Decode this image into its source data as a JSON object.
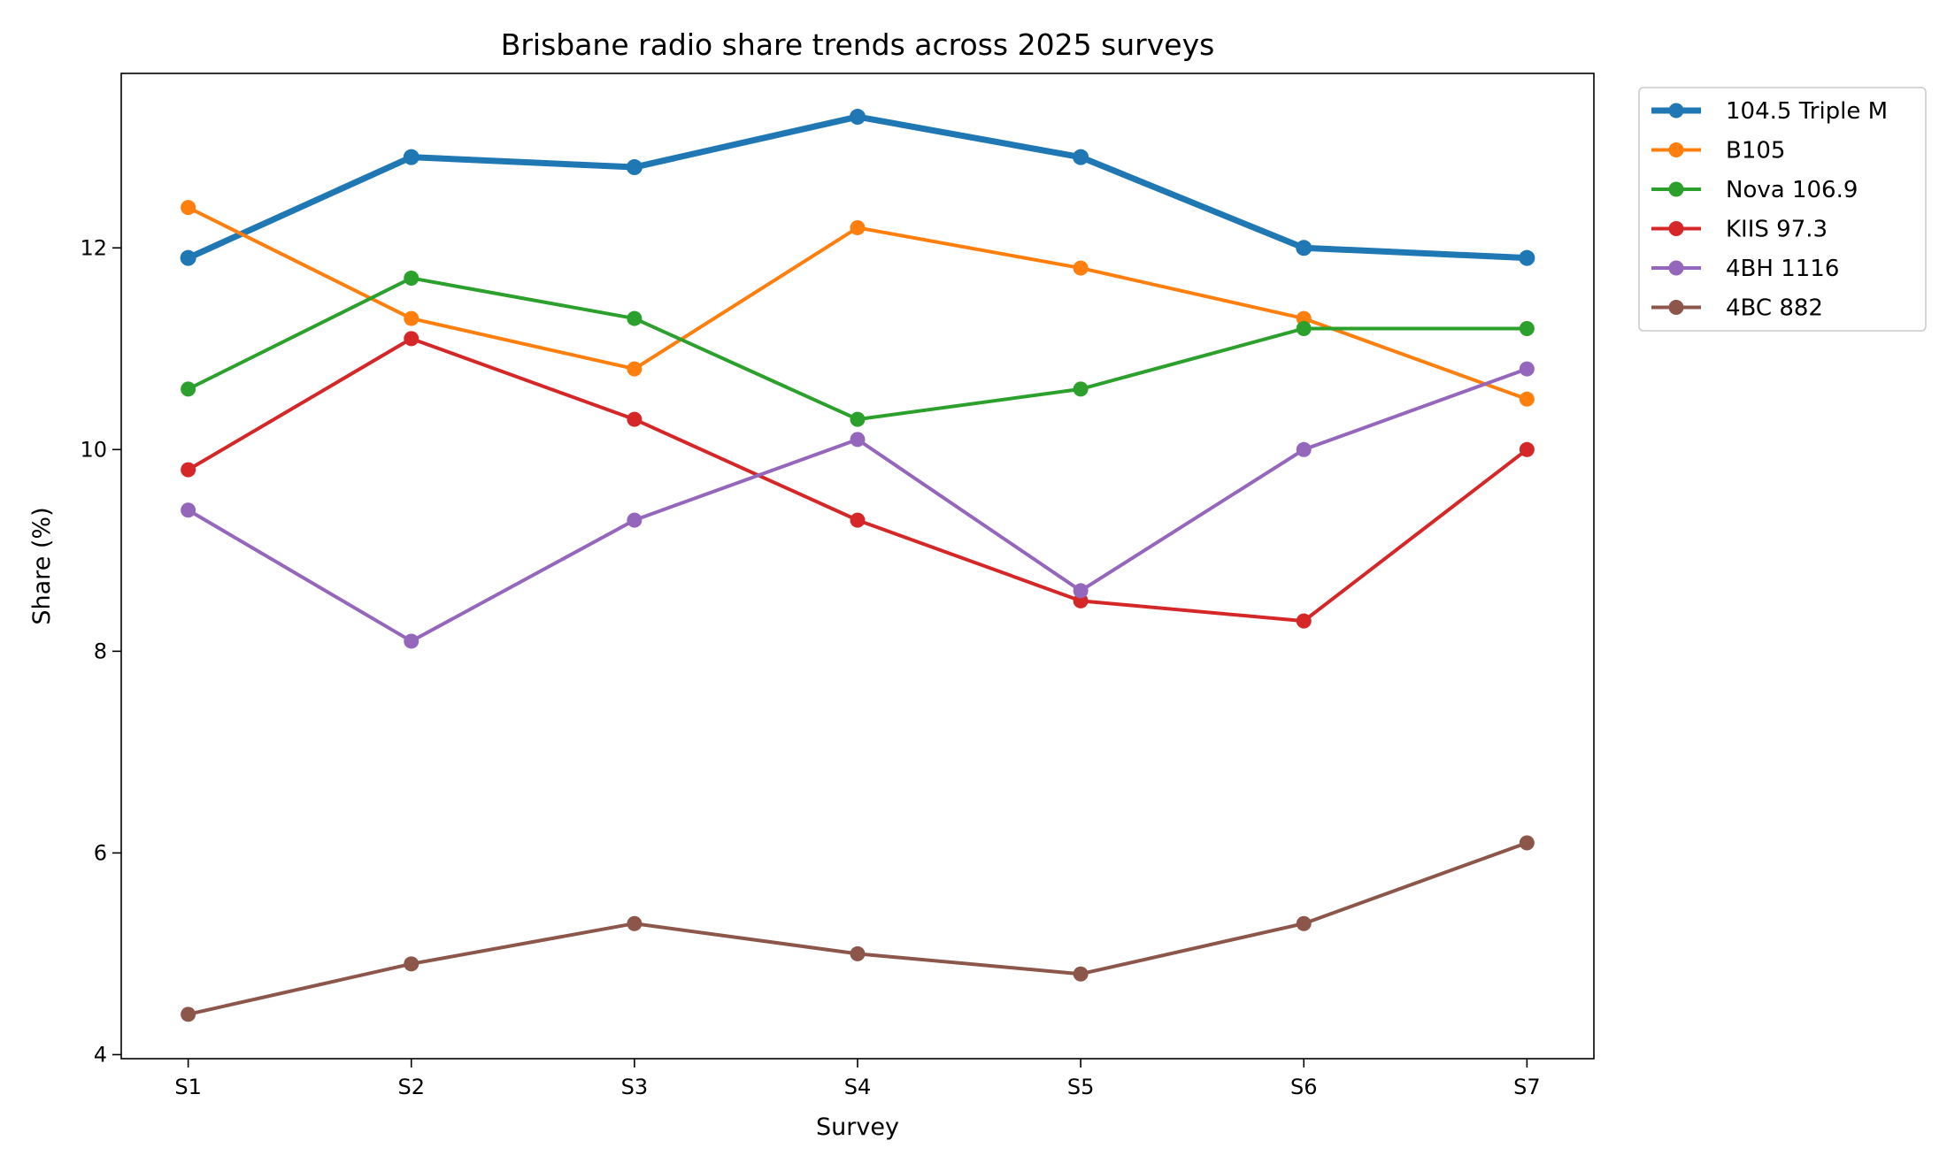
{
  "chart_data": {
    "type": "line",
    "title": "Brisbane radio share trends across 2025 surveys",
    "xlabel": "Survey",
    "ylabel": "Share (%)",
    "categories": [
      "S1",
      "S2",
      "S3",
      "S4",
      "S5",
      "S6",
      "S7"
    ],
    "ylim": [
      3.96,
      13.73
    ],
    "yticks": [
      4,
      6,
      8,
      10,
      12
    ],
    "grid": false,
    "legend_position": "outside-top-right",
    "series": [
      {
        "name": "104.5 Triple M",
        "color": "#1f77b4",
        "emphasis": true,
        "values": [
          11.9,
          12.9,
          12.8,
          13.3,
          12.9,
          12.0,
          11.9
        ]
      },
      {
        "name": "B105",
        "color": "#ff7f0e",
        "values": [
          12.4,
          11.3,
          10.8,
          12.2,
          11.8,
          11.3,
          10.5
        ]
      },
      {
        "name": "Nova 106.9",
        "color": "#2ca02c",
        "values": [
          10.6,
          11.7,
          11.3,
          10.3,
          10.6,
          11.2,
          11.2
        ]
      },
      {
        "name": "KIIS 97.3",
        "color": "#d62728",
        "values": [
          9.8,
          11.1,
          10.3,
          9.3,
          8.5,
          8.3,
          10.0
        ]
      },
      {
        "name": "4BH 1116",
        "color": "#9467bd",
        "values": [
          9.4,
          8.1,
          9.3,
          10.1,
          8.6,
          10.0,
          10.8
        ]
      },
      {
        "name": "4BC 882",
        "color": "#8c564b",
        "values": [
          4.4,
          4.9,
          5.3,
          5.0,
          4.8,
          5.3,
          6.1
        ]
      }
    ]
  }
}
